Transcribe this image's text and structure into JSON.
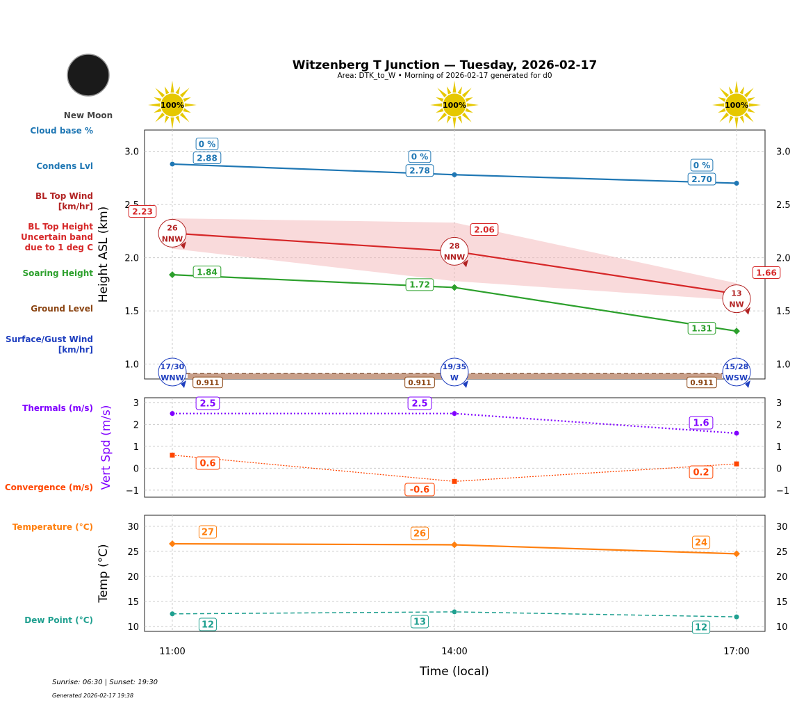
{
  "header": {
    "title": "Witzenberg T Junction — Tuesday, 2026-02-17",
    "subtitle": "Area: DTK_to_W • Morning of 2026-02-17 generated for d0",
    "moon_phase": "New Moon",
    "sun_icons": [
      "100%",
      "100%",
      "100%"
    ]
  },
  "footer": {
    "sun_times": "Sunrise: 06:30 | Sunset: 19:30",
    "generated": "Generated 2026-02-17 19:38"
  },
  "colors": {
    "cloud": "#1f77b4",
    "bl_top": "#d62728",
    "bl_wind": "#b22222",
    "soaring": "#2ca02c",
    "ground": "#8b4513",
    "surface_wind": "#1f3fbf",
    "thermals": "#8000ff",
    "convergence": "#ff4500",
    "temperature": "#ff7f0e",
    "dew": "#20a090"
  },
  "chart_data": [
    {
      "type": "line",
      "ylabel": "Height ASL (km)",
      "ylim": [
        0.86,
        3.2
      ],
      "yticks": [
        "1.0",
        "1.5",
        "2.0",
        "2.5",
        "3.0"
      ],
      "categories": [
        "11:00",
        "14:00",
        "17:00"
      ],
      "grid": true,
      "legend_labels": {
        "cloud_base": "Cloud base %",
        "condens": "Condens Lvl",
        "bl_wind": "BL Top Wind [km/hr]",
        "bl_top": "BL Top Height Uncertain band due to 1 deg C",
        "soaring": "Soaring Height",
        "ground": "Ground Level",
        "surface_wind": "Surface/Gust Wind [km/hr]"
      },
      "series": {
        "condens": [
          2.88,
          2.78,
          2.7
        ],
        "condens_labels": [
          "2.88",
          "2.78",
          "2.70"
        ],
        "cloud_base_labels": [
          "0 %",
          "0 %",
          "0 %"
        ],
        "bl_top": [
          2.23,
          2.06,
          1.66
        ],
        "bl_top_labels": [
          "2.23",
          "2.06",
          "1.66"
        ],
        "bl_band_upper": [
          2.37,
          2.33,
          1.76
        ],
        "bl_band_lower": [
          2.085,
          1.78,
          1.6
        ],
        "bl_wind": [
          {
            "speed": "26",
            "dir": "NNW"
          },
          {
            "speed": "28",
            "dir": "NNW"
          },
          {
            "speed": "13",
            "dir": "NW"
          }
        ],
        "soaring": [
          1.84,
          1.72,
          1.31
        ],
        "soaring_labels": [
          "1.84",
          "1.72",
          "1.31"
        ],
        "ground": [
          0.911,
          0.911,
          0.911
        ],
        "ground_labels": [
          "0.911",
          "0.911",
          "0.911"
        ],
        "surface_wind": [
          {
            "speed": "17/30",
            "dir": "WNW"
          },
          {
            "speed": "19/35",
            "dir": "W"
          },
          {
            "speed": "15/28",
            "dir": "WSW"
          }
        ]
      }
    },
    {
      "type": "line",
      "ylabel": "Vert Spd (m/s)",
      "ylim": [
        -1.32,
        3.22
      ],
      "yticks": [
        "−1",
        "0",
        "1",
        "2",
        "3"
      ],
      "categories": [
        "11:00",
        "14:00",
        "17:00"
      ],
      "legend_labels": {
        "thermals": "Thermals (m/s)",
        "convergence": "Convergence (m/s)"
      },
      "series": {
        "thermals": [
          2.5,
          2.5,
          1.6
        ],
        "thermals_labels": [
          "2.5",
          "2.5",
          "1.6"
        ],
        "convergence": [
          0.6,
          -0.6,
          0.2
        ],
        "convergence_labels": [
          "0.6",
          "-0.6",
          "0.2"
        ]
      }
    },
    {
      "type": "line",
      "ylabel": "Temp (°C)",
      "xlabel": "Time (local)",
      "ylim": [
        9.0,
        32.2
      ],
      "yticks": [
        "10",
        "15",
        "20",
        "25",
        "30"
      ],
      "categories": [
        "11:00",
        "14:00",
        "17:00"
      ],
      "legend_labels": {
        "temperature": "Temperature (°C)",
        "dew": "Dew Point (°C)"
      },
      "series": {
        "temperature": [
          26.5,
          26.3,
          24.5
        ],
        "temperature_labels": [
          "27",
          "26",
          "24"
        ],
        "dew": [
          12.5,
          12.9,
          11.9
        ],
        "dew_labels": [
          "12",
          "13",
          "12"
        ]
      }
    }
  ]
}
